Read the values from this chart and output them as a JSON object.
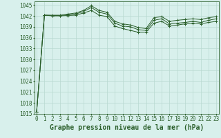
{
  "background_color": "#d8f0ec",
  "plot_bg_color": "#d8f0ec",
  "grid_color": "#b8d8d0",
  "line_color": "#2a5e2a",
  "xlabel": "Graphe pression niveau de la mer (hPa)",
  "ylim": [
    1015,
    1046
  ],
  "yticks": [
    1015,
    1018,
    1021,
    1024,
    1027,
    1030,
    1033,
    1036,
    1039,
    1042,
    1045
  ],
  "xticks": [
    0,
    1,
    2,
    3,
    4,
    5,
    6,
    7,
    8,
    9,
    10,
    11,
    12,
    13,
    14,
    15,
    16,
    17,
    18,
    19,
    20,
    21,
    22,
    23
  ],
  "series1": [
    1015.5,
    1042.2,
    1042.2,
    1042.2,
    1042.5,
    1042.8,
    1043.5,
    1044.8,
    1043.5,
    1043.0,
    1040.5,
    1039.8,
    1039.5,
    1038.8,
    1038.5,
    1041.5,
    1041.8,
    1040.5,
    1040.8,
    1041.0,
    1041.2,
    1041.0,
    1041.5,
    1041.8
  ],
  "series2": [
    1015.5,
    1042.2,
    1042.1,
    1042.1,
    1042.3,
    1042.5,
    1043.2,
    1044.3,
    1043.0,
    1042.5,
    1040.0,
    1039.2,
    1039.0,
    1038.2,
    1038.0,
    1040.8,
    1041.2,
    1039.8,
    1040.0,
    1040.2,
    1040.5,
    1040.2,
    1040.8,
    1041.2
  ],
  "series3": [
    1015.5,
    1042.2,
    1042.0,
    1042.0,
    1042.1,
    1042.2,
    1042.8,
    1043.5,
    1042.2,
    1041.8,
    1039.2,
    1038.5,
    1038.0,
    1037.5,
    1037.5,
    1040.0,
    1040.5,
    1039.2,
    1039.5,
    1039.8,
    1040.0,
    1039.8,
    1040.2,
    1040.5
  ],
  "tick_fontsize": 5.5,
  "label_fontsize": 7.0
}
